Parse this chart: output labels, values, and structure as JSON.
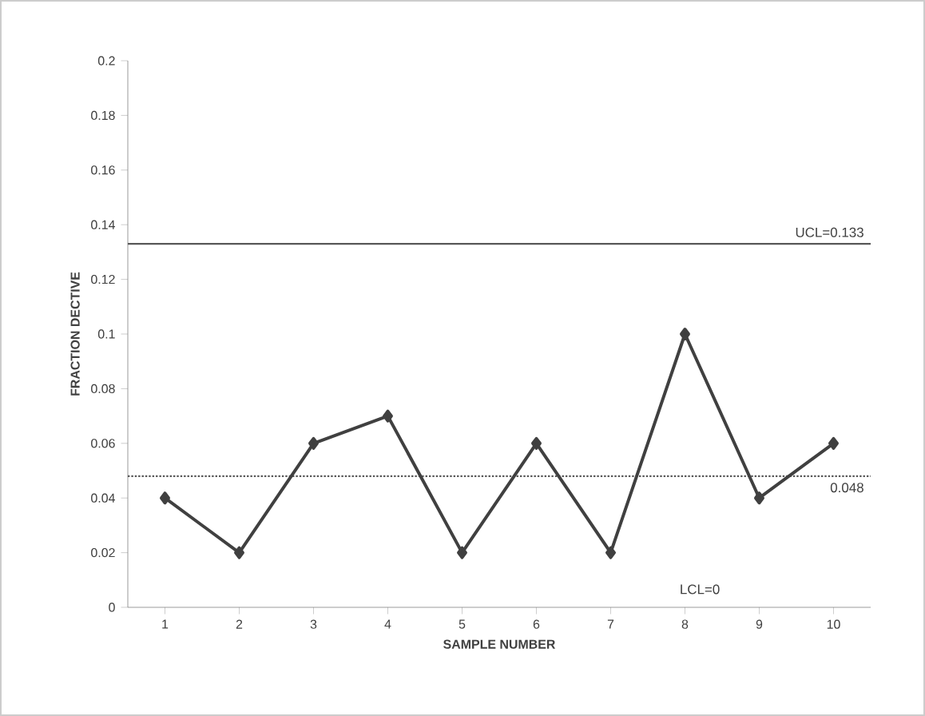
{
  "chart_data": {
    "type": "line",
    "xlabel": "SAMPLE NUMBER",
    "ylabel": "FRACTION DECTIVE",
    "categories": [
      "1",
      "2",
      "3",
      "4",
      "5",
      "6",
      "7",
      "8",
      "9",
      "10"
    ],
    "series": [
      {
        "color": "#404040",
        "values": [
          0.04,
          0.02,
          0.06,
          0.07,
          0.02,
          0.06,
          0.02,
          0.1,
          0.04,
          0.06
        ]
      }
    ],
    "ylim": [
      0,
      0.2
    ],
    "yticks": [
      0,
      0.02,
      0.04,
      0.06,
      0.08,
      0.1,
      0.12,
      0.14,
      0.16,
      0.18,
      0.2
    ],
    "marker": "diamond",
    "line_style": "solid",
    "grid": false,
    "annotations": [
      "LCL=0"
    ],
    "ref_lines": [
      {
        "axis": "y",
        "value": 0.133,
        "label": "UCL=0.133",
        "color": "#595959",
        "line_style": "solid"
      },
      {
        "axis": "y",
        "value": 0.048,
        "label": "0.048",
        "color": "#595959",
        "line_style": "dotted"
      }
    ]
  }
}
